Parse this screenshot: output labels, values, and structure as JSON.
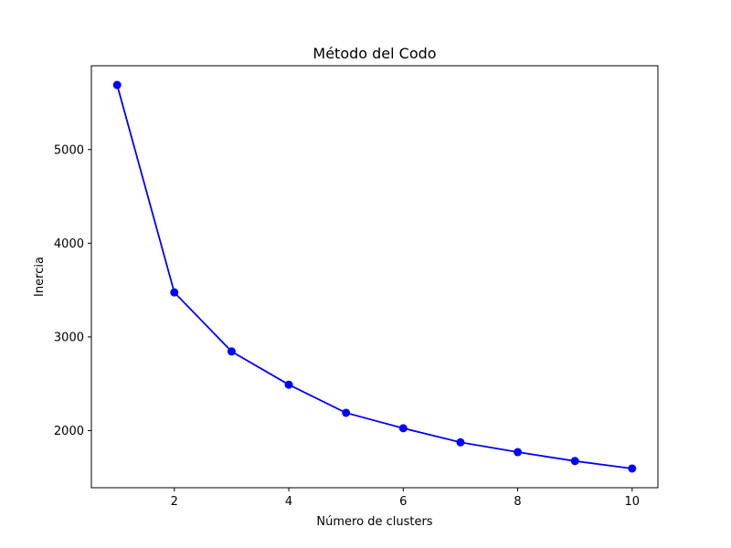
{
  "chart_data": {
    "type": "line",
    "title": "Método del Codo",
    "xlabel": "Número de clusters",
    "ylabel": "Inercia",
    "x": [
      1,
      2,
      3,
      4,
      5,
      6,
      7,
      8,
      9,
      10
    ],
    "series": [
      {
        "values": [
          5690,
          3475,
          2845,
          2490,
          2190,
          2025,
          1875,
          1770,
          1675,
          1595
        ],
        "color": "#0000ff",
        "marker": "circle"
      }
    ],
    "xlim": [
      0.55,
      10.45
    ],
    "ylim": [
      1390,
      5895
    ],
    "xticks": [
      2,
      4,
      6,
      8,
      10
    ],
    "yticks": [
      2000,
      3000,
      4000,
      5000
    ],
    "grid": false,
    "legend": "none"
  }
}
